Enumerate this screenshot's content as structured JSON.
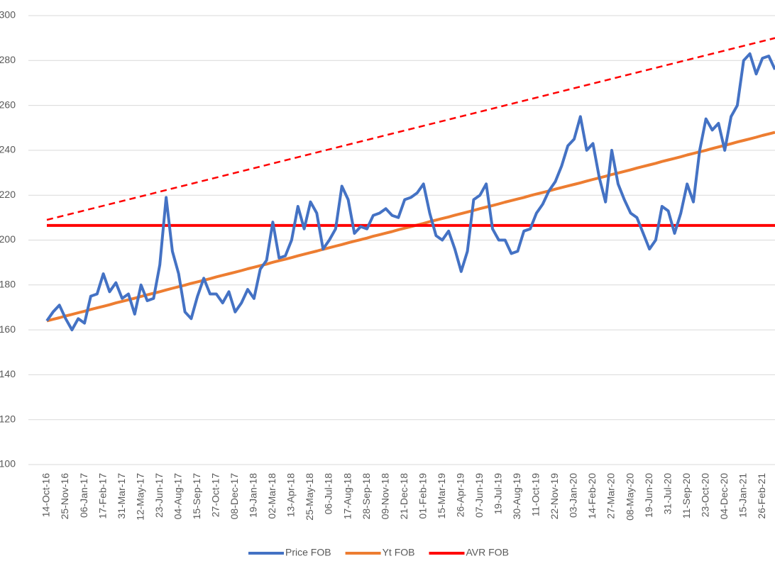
{
  "chart_data": {
    "type": "line",
    "categories": [
      "14-Oct-16",
      null,
      null,
      "25-Nov-16",
      null,
      null,
      "06-Jan-17",
      null,
      null,
      "17-Feb-17",
      null,
      null,
      "31-Mar-17",
      null,
      null,
      "12-May-17",
      null,
      null,
      "23-Jun-17",
      null,
      null,
      "04-Aug-17",
      null,
      null,
      "15-Sep-17",
      null,
      null,
      "27-Oct-17",
      null,
      null,
      "08-Dec-17",
      null,
      null,
      "19-Jan-18",
      null,
      null,
      "02-Mar-18",
      null,
      null,
      "13-Apr-18",
      null,
      null,
      "25-May-18",
      null,
      null,
      "06-Jul-18",
      null,
      null,
      "17-Aug-18",
      null,
      null,
      "28-Sep-18",
      null,
      null,
      "09-Nov-18",
      null,
      null,
      "21-Dec-18",
      null,
      null,
      "01-Feb-19",
      null,
      null,
      "15-Mar-19",
      null,
      null,
      "26-Apr-19",
      null,
      null,
      "07-Jun-19",
      null,
      null,
      "19-Jul-19",
      null,
      null,
      "30-Aug-19",
      null,
      null,
      "11-Oct-19",
      null,
      null,
      "22-Nov-19",
      null,
      null,
      "03-Jan-20",
      null,
      null,
      "14-Feb-20",
      null,
      null,
      "27-Mar-20",
      null,
      null,
      "08-May-20",
      null,
      null,
      "19-Jun-20",
      null,
      null,
      "31-Jul-20",
      null,
      null,
      "11-Sep-20",
      null,
      null,
      "23-Oct-20",
      null,
      null,
      "04-Dec-20",
      null,
      null,
      "15-Jan-21",
      null,
      null,
      "26-Feb-21",
      null,
      null
    ],
    "series": [
      {
        "name": "Price FOB",
        "color": "#4472c4",
        "width": 4,
        "values": [
          164,
          168,
          171,
          165,
          160,
          165,
          163,
          175,
          176,
          185,
          177,
          181,
          174,
          176,
          167,
          180,
          173,
          174,
          189,
          219,
          195,
          185,
          168,
          165,
          175,
          183,
          176,
          176,
          172,
          177,
          168,
          172,
          178,
          174,
          187,
          191,
          208,
          192,
          193,
          200,
          215,
          205,
          217,
          212,
          196,
          200,
          205,
          224,
          218,
          203,
          206,
          205,
          211,
          212,
          214,
          211,
          210,
          218,
          219,
          221,
          225,
          212,
          202,
          200,
          204,
          196,
          186,
          195,
          218,
          220,
          225,
          205,
          200,
          200,
          194,
          195,
          204,
          205,
          212,
          216,
          222,
          226,
          233,
          242,
          245,
          255,
          240,
          243,
          228,
          217,
          240,
          225,
          218,
          212,
          210,
          203,
          196,
          200,
          215,
          213,
          203,
          212,
          225,
          217,
          240,
          254,
          249,
          252,
          240,
          255,
          260,
          280,
          283,
          274,
          281,
          282,
          276
        ]
      },
      {
        "name": "Yt FOB",
        "color": "#ed7d31",
        "width": 4,
        "values": [
          164.0,
          164.7,
          165.4,
          166.2,
          166.9,
          167.6,
          168.3,
          169.1,
          169.8,
          170.5,
          171.2,
          172.0,
          172.7,
          173.4,
          174.1,
          174.9,
          175.6,
          176.3,
          177.0,
          177.8,
          178.5,
          179.2,
          179.9,
          180.7,
          181.4,
          182.1,
          182.8,
          183.6,
          184.3,
          185.0,
          185.7,
          186.4,
          187.2,
          187.9,
          188.6,
          189.3,
          190.1,
          190.8,
          191.5,
          192.2,
          193.0,
          193.7,
          194.4,
          195.1,
          195.9,
          196.6,
          197.3,
          198.0,
          198.8,
          199.5,
          200.2,
          200.9,
          201.7,
          202.4,
          203.1,
          203.8,
          204.6,
          205.3,
          206.0,
          206.7,
          207.4,
          208.2,
          208.9,
          209.6,
          210.3,
          211.1,
          211.8,
          212.5,
          213.2,
          214.0,
          214.7,
          215.4,
          216.1,
          216.9,
          217.6,
          218.3,
          219.0,
          219.8,
          220.5,
          221.2,
          221.9,
          222.7,
          223.4,
          224.1,
          224.8,
          225.5,
          226.3,
          227.0,
          227.7,
          228.4,
          229.2,
          229.9,
          230.6,
          231.3,
          232.1,
          232.8,
          233.5,
          234.2,
          235.0,
          235.7,
          236.4,
          237.1,
          237.9,
          238.6,
          239.3,
          240.0,
          240.8,
          241.5,
          242.2,
          242.9,
          243.7,
          244.4,
          245.1,
          245.8,
          246.6,
          247.3,
          248.0
        ]
      },
      {
        "name": "AVR FOB",
        "color": "#ff0000",
        "width": 4,
        "values": [
          206.5,
          206.5,
          206.5,
          206.5,
          206.5,
          206.5,
          206.5,
          206.5,
          206.5,
          206.5,
          206.5,
          206.5,
          206.5,
          206.5,
          206.5,
          206.5,
          206.5,
          206.5,
          206.5,
          206.5,
          206.5,
          206.5,
          206.5,
          206.5,
          206.5,
          206.5,
          206.5,
          206.5,
          206.5,
          206.5,
          206.5,
          206.5,
          206.5,
          206.5,
          206.5,
          206.5,
          206.5,
          206.5,
          206.5,
          206.5,
          206.5,
          206.5,
          206.5,
          206.5,
          206.5,
          206.5,
          206.5,
          206.5,
          206.5,
          206.5,
          206.5,
          206.5,
          206.5,
          206.5,
          206.5,
          206.5,
          206.5,
          206.5,
          206.5,
          206.5,
          206.5,
          206.5,
          206.5,
          206.5,
          206.5,
          206.5,
          206.5,
          206.5,
          206.5,
          206.5,
          206.5,
          206.5,
          206.5,
          206.5,
          206.5,
          206.5,
          206.5,
          206.5,
          206.5,
          206.5,
          206.5,
          206.5,
          206.5,
          206.5,
          206.5,
          206.5,
          206.5,
          206.5,
          206.5,
          206.5,
          206.5,
          206.5,
          206.5,
          206.5,
          206.5,
          206.5,
          206.5,
          206.5,
          206.5,
          206.5,
          206.5,
          206.5,
          206.5,
          206.5,
          206.5,
          206.5,
          206.5,
          206.5,
          206.5,
          206.5,
          206.5,
          206.5,
          206.5,
          206.5,
          206.5,
          206.5,
          206.5
        ]
      }
    ],
    "upper_line": {
      "values": [
        209,
        290
      ],
      "color": "#ff0000",
      "dashed": true
    },
    "ylim": [
      100,
      300
    ],
    "yticks": [
      100,
      120,
      140,
      160,
      180,
      200,
      220,
      240,
      260,
      280,
      300
    ],
    "grid": true,
    "legend": "bottom"
  }
}
